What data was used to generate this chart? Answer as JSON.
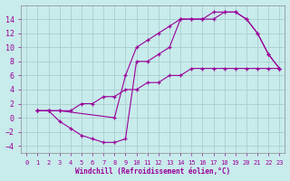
{
  "background_color": "#c8ebeb",
  "grid_color": "#b0d8d8",
  "line_color": "#990099",
  "marker_color": "#990099",
  "xlabel": "Windchill (Refroidissement éolien,°C)",
  "xlim": [
    -0.5,
    23.5
  ],
  "ylim": [
    -5,
    16
  ],
  "yticks": [
    -4,
    -2,
    0,
    2,
    4,
    6,
    8,
    10,
    12,
    14
  ],
  "xticks": [
    0,
    1,
    2,
    3,
    4,
    5,
    6,
    7,
    8,
    9,
    10,
    11,
    12,
    13,
    14,
    15,
    16,
    17,
    18,
    19,
    20,
    21,
    22,
    23
  ],
  "series": [
    {
      "x": [
        1,
        2,
        3,
        4,
        5,
        6,
        7,
        8,
        9,
        10,
        11,
        12,
        13,
        14,
        15,
        16,
        17,
        18,
        19,
        20,
        21,
        22,
        23
      ],
      "y": [
        1,
        1,
        1,
        1,
        2,
        2,
        3,
        3,
        4,
        4,
        5,
        5,
        6,
        6,
        7,
        7,
        7,
        7,
        7,
        7,
        7,
        7,
        7
      ]
    },
    {
      "x": [
        1,
        2,
        3,
        8,
        9,
        10,
        11,
        12,
        13,
        14,
        15,
        16,
        17,
        18,
        19,
        20,
        21,
        22,
        23
      ],
      "y": [
        1,
        1,
        1,
        0,
        6,
        10,
        11,
        12,
        13,
        14,
        14,
        14,
        15,
        15,
        15,
        14,
        12,
        9,
        7
      ]
    },
    {
      "x": [
        1,
        2,
        3,
        4,
        5,
        6,
        7,
        8,
        9,
        10,
        11,
        12,
        13,
        14,
        15,
        16,
        17,
        18,
        19,
        20,
        21,
        22,
        23
      ],
      "y": [
        1,
        1,
        -0.5,
        -1.5,
        -2.5,
        -3,
        -3.5,
        -3.5,
        -3,
        8,
        8,
        9,
        10,
        14,
        14,
        14,
        14,
        15,
        15,
        14,
        12,
        9,
        7
      ]
    }
  ]
}
